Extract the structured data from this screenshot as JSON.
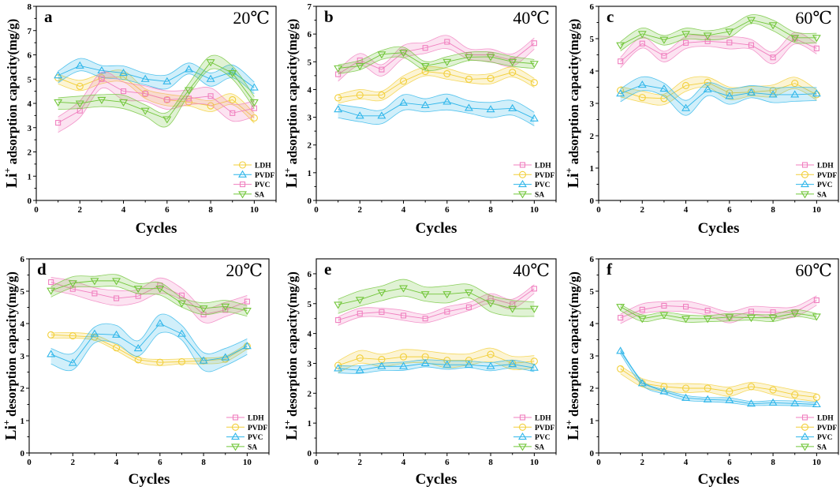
{
  "colors": {
    "pink": "#f07fbf",
    "yellow": "#f2cf3a",
    "blue": "#2fb6ea",
    "green": "#72c63a"
  },
  "chart_data": [
    {
      "type": "line",
      "label": "a",
      "temperature": "20℃",
      "ylabel_prefix": "Li",
      "ylabel_sup": "+",
      "ylabel": " adsorption capacity(mg/g)",
      "xlabel": "Cycles",
      "xlim": [
        0,
        11
      ],
      "ylim": [
        0,
        8
      ],
      "xticks": [
        0,
        2,
        4,
        6,
        8,
        10
      ],
      "yticks": [
        0,
        1,
        2,
        3,
        4,
        5,
        6,
        7,
        8
      ],
      "x": [
        1,
        2,
        3,
        4,
        5,
        6,
        7,
        8,
        9,
        10
      ],
      "legend_position": "bottom-right",
      "series": [
        {
          "name": "LDH",
          "color": "yellow",
          "marker": "circle",
          "band": 0.25,
          "values": [
            5.05,
            4.7,
            5.05,
            5.1,
            4.4,
            4.15,
            4.05,
            3.9,
            4.15,
            3.4
          ]
        },
        {
          "name": "PVDF",
          "color": "blue",
          "marker": "triangle-up",
          "band": 0.3,
          "values": [
            5.15,
            5.55,
            5.35,
            5.25,
            5.0,
            4.9,
            5.4,
            5.0,
            5.3,
            4.65
          ]
        },
        {
          "name": "PVC",
          "color": "pink",
          "marker": "square",
          "band": 0.4,
          "values": [
            3.2,
            3.7,
            5.0,
            4.5,
            4.4,
            4.15,
            4.2,
            4.3,
            3.6,
            3.8
          ]
        },
        {
          "name": "SA",
          "color": "green",
          "marker": "triangle-down",
          "band": 0.3,
          "values": [
            4.05,
            4.0,
            4.15,
            4.05,
            3.7,
            3.35,
            4.55,
            5.7,
            5.25,
            4.05
          ]
        }
      ]
    },
    {
      "type": "line",
      "label": "b",
      "temperature": "40℃",
      "ylabel_prefix": "Li",
      "ylabel_sup": "+",
      "ylabel": " adsorption capacity(mg/g)",
      "xlabel": "Cycles",
      "xlim": [
        0,
        11
      ],
      "ylim": [
        0,
        7
      ],
      "xticks": [
        0,
        2,
        4,
        6,
        8,
        10
      ],
      "yticks": [
        0,
        1,
        2,
        3,
        4,
        5,
        6,
        7
      ],
      "x": [
        1,
        2,
        3,
        4,
        5,
        6,
        7,
        8,
        9,
        10
      ],
      "legend_position": "bottom-right",
      "series": [
        {
          "name": "LDH",
          "color": "pink",
          "marker": "square",
          "band": 0.25,
          "values": [
            4.55,
            5.05,
            4.72,
            5.35,
            5.5,
            5.72,
            5.25,
            5.25,
            5.05,
            5.67
          ]
        },
        {
          "name": "PVDF",
          "color": "yellow",
          "marker": "circle",
          "band": 0.2,
          "values": [
            3.7,
            3.8,
            3.8,
            4.3,
            4.65,
            4.57,
            4.37,
            4.4,
            4.62,
            4.25
          ]
        },
        {
          "name": "PVC",
          "color": "blue",
          "marker": "triangle-up",
          "band": 0.3,
          "values": [
            3.28,
            3.05,
            3.05,
            3.52,
            3.43,
            3.56,
            3.33,
            3.28,
            3.32,
            2.95
          ]
        },
        {
          "name": "SA",
          "color": "green",
          "marker": "triangle-down",
          "band": 0.2,
          "values": [
            4.77,
            4.85,
            5.27,
            5.33,
            4.85,
            5.0,
            5.17,
            5.18,
            5.0,
            4.93
          ]
        }
      ]
    },
    {
      "type": "line",
      "label": "c",
      "temperature": "60℃",
      "ylabel_prefix": "Li",
      "ylabel_sup": "+",
      "ylabel": " adsorption capacity(mg/g)",
      "xlabel": "Cycles",
      "xlim": [
        0,
        11
      ],
      "ylim": [
        0,
        6
      ],
      "xticks": [
        0,
        2,
        4,
        6,
        8,
        10
      ],
      "yticks": [
        0,
        1,
        2,
        3,
        4,
        5,
        6
      ],
      "x": [
        1,
        2,
        3,
        4,
        5,
        6,
        7,
        8,
        9,
        10
      ],
      "legend_position": "bottom-right",
      "series": [
        {
          "name": "LDH",
          "color": "pink",
          "marker": "square",
          "band": 0.2,
          "values": [
            4.3,
            4.85,
            4.47,
            4.87,
            4.92,
            4.88,
            4.8,
            4.42,
            5.0,
            4.7
          ]
        },
        {
          "name": "PVDF",
          "color": "yellow",
          "marker": "circle",
          "band": 0.2,
          "values": [
            3.4,
            3.18,
            3.15,
            3.55,
            3.65,
            3.32,
            3.35,
            3.4,
            3.62,
            3.27
          ]
        },
        {
          "name": "PVC",
          "color": "blue",
          "marker": "triangle-up",
          "band": 0.25,
          "values": [
            3.3,
            3.57,
            3.45,
            2.85,
            3.43,
            3.22,
            3.33,
            3.27,
            3.27,
            3.3
          ]
        },
        {
          "name": "SA",
          "color": "green",
          "marker": "triangle-down",
          "band": 0.18,
          "values": [
            4.8,
            5.15,
            4.97,
            5.15,
            5.1,
            5.22,
            5.58,
            5.42,
            5.03,
            5.03
          ]
        }
      ]
    },
    {
      "type": "line",
      "label": "d",
      "temperature": "20℃",
      "ylabel_prefix": "Li",
      "ylabel_sup": "+",
      "ylabel": " desorption capacity(mg/g)",
      "xlabel": "Cycles",
      "xlim": [
        0,
        11
      ],
      "ylim": [
        0,
        6
      ],
      "xticks": [
        0,
        2,
        4,
        6,
        8,
        10
      ],
      "yticks": [
        0,
        1,
        2,
        3,
        4,
        5,
        6
      ],
      "x": [
        1,
        2,
        3,
        4,
        5,
        6,
        7,
        8,
        9,
        10
      ],
      "legend_position": "bottom-right",
      "series": [
        {
          "name": "LDH",
          "color": "pink",
          "marker": "square",
          "band": 0.25,
          "values": [
            5.28,
            5.07,
            4.93,
            4.78,
            4.85,
            5.18,
            4.87,
            4.28,
            4.42,
            4.68
          ]
        },
        {
          "name": "PVDF",
          "color": "yellow",
          "marker": "circle",
          "band": 0.1,
          "values": [
            3.65,
            3.62,
            3.58,
            3.25,
            2.88,
            2.8,
            2.82,
            2.85,
            2.9,
            3.3
          ]
        },
        {
          "name": "PVC",
          "color": "blue",
          "marker": "triangle-up",
          "band": 0.3,
          "values": [
            3.05,
            2.78,
            3.68,
            3.65,
            3.23,
            4.0,
            3.68,
            2.85,
            2.95,
            3.3
          ]
        },
        {
          "name": "SA",
          "color": "green",
          "marker": "triangle-down",
          "band": 0.2,
          "values": [
            5.02,
            5.25,
            5.32,
            5.32,
            5.08,
            5.08,
            4.63,
            4.47,
            4.53,
            4.4
          ]
        }
      ]
    },
    {
      "type": "line",
      "label": "e",
      "temperature": "40℃",
      "ylabel_prefix": "Li",
      "ylabel_sup": "+",
      "ylabel": " desorption capacity(mg/g)",
      "xlabel": "Cycles",
      "xlim": [
        0,
        11
      ],
      "ylim": [
        0,
        6.5
      ],
      "xticks": [
        0,
        2,
        4,
        6,
        8,
        10
      ],
      "yticks": [
        0,
        1,
        2,
        3,
        4,
        5,
        6
      ],
      "x": [
        1,
        2,
        3,
        4,
        5,
        6,
        7,
        8,
        9,
        10
      ],
      "legend_position": "bottom-right",
      "series": [
        {
          "name": "LDH",
          "color": "pink",
          "marker": "square",
          "band": 0.18,
          "values": [
            4.45,
            4.67,
            4.72,
            4.6,
            4.5,
            4.73,
            4.88,
            5.18,
            4.98,
            5.5
          ]
        },
        {
          "name": "PVDF",
          "color": "yellow",
          "marker": "circle",
          "band": 0.25,
          "values": [
            2.93,
            3.18,
            3.13,
            3.22,
            3.22,
            3.1,
            3.1,
            3.3,
            3.0,
            3.07
          ]
        },
        {
          "name": "PVC",
          "color": "blue",
          "marker": "triangle-up",
          "band": 0.15,
          "values": [
            2.83,
            2.77,
            2.9,
            2.9,
            3.0,
            2.95,
            2.95,
            2.9,
            2.97,
            2.85
          ]
        },
        {
          "name": "SA",
          "color": "green",
          "marker": "triangle-down",
          "band": 0.3,
          "values": [
            4.97,
            5.13,
            5.38,
            5.52,
            5.32,
            5.32,
            5.38,
            5.02,
            4.83,
            4.83
          ]
        }
      ]
    },
    {
      "type": "line",
      "label": "f",
      "temperature": "60℃",
      "ylabel_prefix": "Li",
      "ylabel_sup": "+",
      "ylabel": " desorption capacity(mg/g)",
      "xlabel": "Cycles",
      "xlim": [
        0,
        11
      ],
      "ylim": [
        0,
        6
      ],
      "xticks": [
        0,
        2,
        4,
        6,
        8,
        10
      ],
      "yticks": [
        0,
        1,
        2,
        3,
        4,
        5,
        6
      ],
      "x": [
        1,
        2,
        3,
        4,
        5,
        6,
        7,
        8,
        9,
        10
      ],
      "legend_position": "bottom-right",
      "series": [
        {
          "name": "LDH",
          "color": "pink",
          "marker": "square",
          "band": 0.18,
          "values": [
            4.18,
            4.43,
            4.55,
            4.52,
            4.4,
            4.2,
            4.37,
            4.35,
            4.35,
            4.72
          ]
        },
        {
          "name": "PVDF",
          "color": "yellow",
          "marker": "circle",
          "band": 0.15,
          "values": [
            2.6,
            2.15,
            2.05,
            2.0,
            2.0,
            1.9,
            2.05,
            1.95,
            1.8,
            1.72
          ]
        },
        {
          "name": "PVC",
          "color": "blue",
          "marker": "triangle-up",
          "band": 0.08,
          "values": [
            3.15,
            2.15,
            1.9,
            1.7,
            1.65,
            1.63,
            1.52,
            1.55,
            1.53,
            1.5
          ]
        },
        {
          "name": "SA",
          "color": "green",
          "marker": "triangle-down",
          "band": 0.12,
          "values": [
            4.52,
            4.15,
            4.27,
            4.15,
            4.15,
            4.2,
            4.18,
            4.18,
            4.32,
            4.22
          ]
        }
      ]
    }
  ]
}
